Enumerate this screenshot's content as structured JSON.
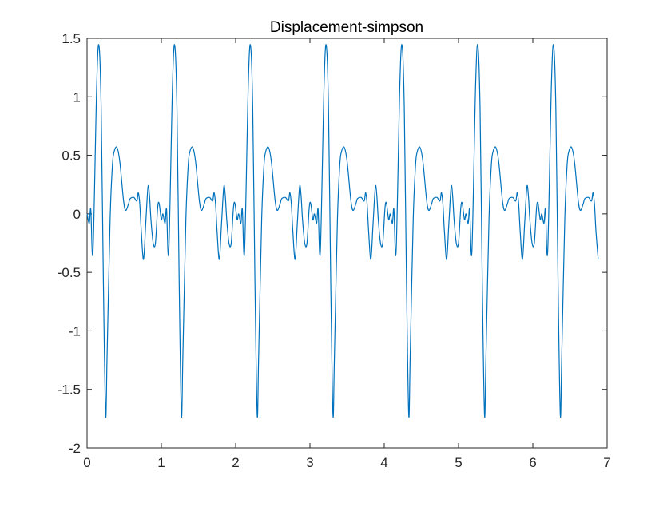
{
  "chart_data": {
    "type": "line",
    "title": "Displacement-simpson",
    "xlabel": "",
    "ylabel": "",
    "xlim": [
      0,
      7
    ],
    "ylim": [
      -2,
      1.5
    ],
    "x_ticks": [
      0,
      1,
      2,
      3,
      4,
      5,
      6,
      7
    ],
    "y_ticks": [
      -2,
      -1.5,
      -1,
      -0.5,
      0,
      0.5,
      1,
      1.5
    ],
    "x_tick_labels": [
      "0",
      "1",
      "2",
      "3",
      "4",
      "5",
      "6",
      "7"
    ],
    "y_tick_labels": [
      "-2",
      "-1.5",
      "-1",
      "-0.5",
      "0",
      "0.5",
      "1",
      "1.5"
    ],
    "grid": false,
    "legend": "none",
    "line_color": "#0072BD",
    "period": 1.02,
    "x_end": 6.88,
    "series": [
      {
        "name": "",
        "cycle_shape": {
          "x": [
            0.0,
            0.03,
            0.05,
            0.08,
            0.13,
            0.16,
            0.19,
            0.22,
            0.25,
            0.27,
            0.31,
            0.34,
            0.36,
            0.4,
            0.44,
            0.49,
            0.52,
            0.56,
            0.58,
            0.63,
            0.67,
            0.69,
            0.71,
            0.73,
            0.76,
            0.79,
            0.82,
            0.84,
            0.86,
            0.89,
            0.92,
            0.95,
            0.97,
            1.0,
            1.02
          ],
          "y": [
            0.0,
            -0.08,
            0.04,
            -0.32,
            1.1,
            1.44,
            0.9,
            -0.6,
            -1.72,
            -1.2,
            -0.05,
            0.4,
            0.52,
            0.57,
            0.45,
            0.12,
            0.03,
            0.09,
            0.13,
            0.14,
            0.11,
            0.18,
            0.08,
            -0.15,
            -0.39,
            -0.08,
            0.23,
            0.16,
            -0.05,
            -0.25,
            -0.25,
            0.05,
            0.09,
            -0.05,
            0.0
          ]
        }
      }
    ]
  }
}
